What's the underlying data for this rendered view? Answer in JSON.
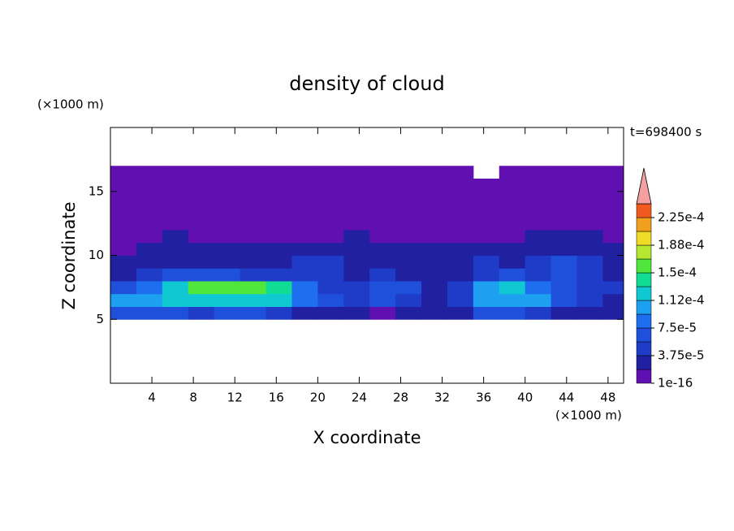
{
  "chart_data": {
    "type": "contour",
    "title": "density of cloud",
    "x_label": "X coordinate",
    "y_label": "Z coordinate",
    "x_unit": "(×1000 m)",
    "y_unit": "(×1000 m)",
    "annotation": "t=698400 s",
    "xlim": [
      0,
      49.5
    ],
    "ylim": [
      0,
      20
    ],
    "xticks": [
      4,
      8,
      12,
      16,
      20,
      24,
      28,
      32,
      36,
      40,
      44,
      48
    ],
    "yticks": [
      5,
      10,
      15
    ],
    "x_edges": [
      0,
      2.5,
      5,
      7.5,
      10,
      12.5,
      15,
      17.5,
      20,
      22.5,
      25,
      27.5,
      30,
      32.5,
      35,
      37.5,
      40,
      42.5,
      45,
      47.5,
      49.5
    ],
    "z_edges": [
      5,
      6,
      7,
      8,
      9,
      10,
      11,
      12,
      13,
      14,
      15,
      16,
      17
    ],
    "values": [
      [
        6e-05,
        6e-05,
        7e-05,
        5e-05,
        6e-05,
        6e-05,
        5e-05,
        3e-05,
        2e-05,
        2e-05,
        1e-05,
        2e-05,
        2e-05,
        3e-05,
        6e-05,
        7e-05,
        5e-05,
        3e-05,
        2e-05,
        2e-05
      ],
      [
        0.0001,
        0.00011,
        0.00012,
        0.00012,
        0.00013,
        0.00013,
        0.00012,
        8e-05,
        6e-05,
        4e-05,
        7e-05,
        4e-05,
        3e-05,
        5e-05,
        0.0001,
        0.00011,
        0.0001,
        6e-05,
        4e-05,
        3e-05
      ],
      [
        6e-05,
        8e-05,
        0.00013,
        0.00015,
        0.00016,
        0.00016,
        0.00014,
        9e-05,
        5e-05,
        4e-05,
        7e-05,
        6e-05,
        3e-05,
        4e-05,
        0.00011,
        0.00012,
        8e-05,
        6e-05,
        4e-05,
        5e-05
      ],
      [
        3e-05,
        4e-05,
        6e-05,
        7e-05,
        6e-05,
        5e-05,
        4e-05,
        5e-05,
        4e-05,
        3e-05,
        4e-05,
        3e-05,
        3e-05,
        3e-05,
        5e-05,
        6e-05,
        5e-05,
        6e-05,
        4e-05,
        3e-05
      ],
      [
        2e-05,
        2e-05,
        2.5e-05,
        3e-05,
        2e-05,
        2.5e-05,
        3e-05,
        4e-05,
        5e-05,
        3e-05,
        3e-05,
        2.5e-05,
        3e-05,
        3e-05,
        4e-05,
        3e-05,
        5e-05,
        6e-05,
        4e-05,
        3e-05
      ],
      [
        1.5e-05,
        2e-05,
        2e-05,
        2e-05,
        2e-05,
        2e-05,
        2e-05,
        2.5e-05,
        3e-05,
        2e-05,
        2e-05,
        2e-05,
        2e-05,
        2e-05,
        2e-05,
        3e-05,
        2.5e-05,
        3e-05,
        3e-05,
        2e-05
      ],
      [
        1e-05,
        1e-05,
        2e-05,
        1e-05,
        1e-05,
        1e-05,
        1e-05,
        1e-05,
        1e-05,
        2e-05,
        1e-05,
        1e-05,
        1e-05,
        1e-05,
        1e-05,
        1e-05,
        2e-05,
        2e-05,
        2e-05,
        1e-05
      ],
      [
        5e-06,
        5e-06,
        5e-06,
        5e-06,
        5e-06,
        5e-06,
        5e-06,
        5e-06,
        5e-06,
        5e-06,
        5e-06,
        5e-06,
        5e-06,
        5e-06,
        5e-06,
        5e-06,
        5e-06,
        5e-06,
        5e-06,
        5e-06
      ],
      [
        5e-06,
        5e-06,
        5e-06,
        5e-06,
        5e-06,
        5e-06,
        5e-06,
        5e-06,
        5e-06,
        5e-06,
        5e-06,
        5e-06,
        5e-06,
        5e-06,
        5e-06,
        5e-06,
        5e-06,
        5e-06,
        5e-06,
        5e-06
      ],
      [
        5e-06,
        5e-06,
        5e-06,
        5e-06,
        5e-06,
        5e-06,
        5e-06,
        5e-06,
        5e-06,
        5e-06,
        5e-06,
        5e-06,
        5e-06,
        5e-06,
        5e-06,
        5e-06,
        5e-06,
        5e-06,
        5e-06,
        5e-06
      ],
      [
        5e-06,
        5e-06,
        5e-06,
        5e-06,
        5e-06,
        5e-06,
        5e-06,
        5e-06,
        5e-06,
        5e-06,
        5e-06,
        5e-06,
        5e-06,
        5e-06,
        5e-06,
        5e-06,
        5e-06,
        5e-06,
        5e-06,
        5e-06
      ],
      [
        5e-06,
        5e-06,
        5e-06,
        5e-06,
        5e-06,
        5e-06,
        5e-06,
        5e-06,
        5e-06,
        5e-06,
        5e-06,
        5e-06,
        5e-06,
        5e-06,
        null,
        5e-06,
        5e-06,
        5e-06,
        5e-06,
        5e-06
      ]
    ],
    "levels": [
      1e-16,
      1.875e-05,
      3.75e-05,
      5.625e-05,
      7.5e-05,
      9.375e-05,
      0.0001125,
      0.00013125,
      0.00015,
      0.00016875,
      0.0001875,
      0.00020625,
      0.000225,
      0.00024375
    ],
    "colors": [
      "#6010b0",
      "#2020a0",
      "#1e3cc8",
      "#1e50dc",
      "#1e6ef0",
      "#1ea0f0",
      "#10c8d2",
      "#10dc96",
      "#50e63c",
      "#b4e632",
      "#f0dc28",
      "#f0a01e",
      "#f05a1e",
      "#f5a0a0"
    ],
    "colorbar_ticks": [
      {
        "value": 1e-16,
        "label": "1e-16"
      },
      {
        "value": 3.75e-05,
        "label": "3.75e-5"
      },
      {
        "value": 7.5e-05,
        "label": "7.5e-5"
      },
      {
        "value": 0.0001125,
        "label": "1.12e-4"
      },
      {
        "value": 0.00015,
        "label": "1.5e-4"
      },
      {
        "value": 0.0001875,
        "label": "1.88e-4"
      },
      {
        "value": 0.000225,
        "label": "2.25e-4"
      }
    ]
  }
}
